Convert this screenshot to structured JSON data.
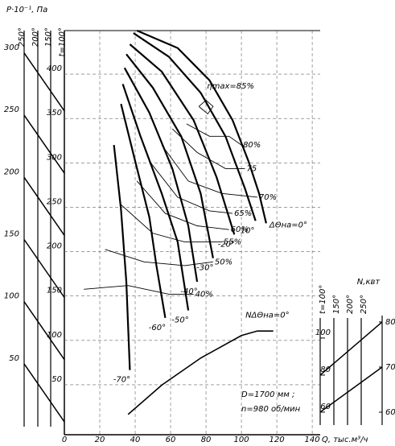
{
  "chart_data": {
    "type": "line",
    "ylabel": "P·10⁻¹, Па",
    "xlabel": "Q, тыс.м³/ч",
    "xlim": [
      0,
      144.5
    ],
    "xticks": [
      0,
      20,
      40,
      60,
      80,
      100,
      120,
      140
    ],
    "ylim": [
      -7,
      318
    ],
    "yticks": [
      50,
      100,
      150,
      200,
      250,
      300
    ],
    "t_axis_labels": [
      "250°",
      "200°",
      "150°",
      "t=100°"
    ],
    "tlim": [
      -6.3,
      449
    ],
    "tticks": [
      50,
      100,
      150,
      200,
      250,
      300,
      350,
      400
    ],
    "y2lim": [
      55,
      144.6
    ],
    "y2label": "N,квт",
    "y2ticks": [
      60,
      70,
      80
    ],
    "power_t_labels": [
      "t=100°",
      "150°",
      "200°",
      "250°"
    ],
    "power_tlim": [
      47.8,
      113
    ],
    "power_tticks": [
      60,
      80,
      100
    ],
    "grid": true,
    "annotations": [
      "D=1700 мм ;",
      "n=980 об/мин"
    ],
    "series": [
      {
        "name": "ΔΘна=0°",
        "color": "#000",
        "kind": "pressure",
        "x": [
          41,
          64,
          82,
          95,
          104,
          110,
          114
        ],
        "values": [
          318,
          304,
          278,
          246,
          213,
          187,
          163
        ]
      },
      {
        "name": "10°",
        "color": "#000",
        "kind": "pressure",
        "x": [
          39,
          59,
          77,
          91,
          102,
          108
        ],
        "values": [
          316,
          297,
          268,
          233,
          191,
          165
        ]
      },
      {
        "name": "-20°",
        "color": "#000",
        "kind": "pressure",
        "x": [
          37,
          55,
          73,
          86,
          96
        ],
        "values": [
          307,
          285,
          246,
          200,
          154
        ]
      },
      {
        "name": "-30°",
        "color": "#000",
        "kind": "pressure",
        "x": [
          35,
          50,
          66,
          77,
          84
        ],
        "values": [
          299,
          272,
          233,
          187,
          135
        ]
      },
      {
        "name": "-40°",
        "color": "#000",
        "kind": "pressure",
        "x": [
          34,
          48,
          61,
          70,
          75
        ],
        "values": [
          288,
          252,
          207,
          161,
          116
        ]
      },
      {
        "name": "-50°",
        "color": "#000",
        "kind": "pressure",
        "x": [
          33,
          43,
          55,
          64,
          70
        ],
        "values": [
          275,
          233,
          187,
          148,
          93
        ]
      },
      {
        "name": "-60°",
        "color": "#000",
        "kind": "pressure",
        "x": [
          32,
          40,
          48,
          52,
          57
        ],
        "values": [
          259,
          213,
          168,
          129,
          87
        ]
      },
      {
        "name": "-70°",
        "color": "#000",
        "kind": "pressure",
        "x": [
          28,
          32,
          35,
          37
        ],
        "values": [
          226,
          174,
          116,
          45
        ]
      },
      {
        "name": "ηmax=85%",
        "color": "#000",
        "kind": "efficiency",
        "x": [
          76,
          80,
          84,
          81,
          76
        ],
        "values": [
          257,
          262,
          257,
          251,
          257
        ]
      },
      {
        "name": "80%",
        "color": "#000",
        "kind": "efficiency",
        "x": [
          69,
          82,
          93,
          100
        ],
        "values": [
          243,
          233,
          233,
          226
        ]
      },
      {
        "name": "75",
        "color": "#000",
        "kind": "efficiency",
        "x": [
          61,
          75,
          91,
          102
        ],
        "values": [
          239,
          220,
          207,
          207
        ]
      },
      {
        "name": "70%",
        "color": "#000",
        "kind": "efficiency",
        "x": [
          55,
          70,
          89,
          109
        ],
        "values": [
          226,
          197,
          187,
          184
        ]
      },
      {
        "name": "65%",
        "color": "#000",
        "kind": "efficiency",
        "x": [
          48,
          64,
          82,
          95
        ],
        "values": [
          213,
          184,
          173,
          171
        ]
      },
      {
        "name": "60%",
        "color": "#000",
        "kind": "efficiency",
        "x": [
          41,
          57,
          75,
          93
        ],
        "values": [
          197,
          171,
          161,
          158
        ]
      },
      {
        "name": "55%",
        "color": "#000",
        "kind": "efficiency",
        "x": [
          32,
          50,
          68,
          89
        ],
        "values": [
          178,
          155,
          148,
          148
        ]
      },
      {
        "name": "50%",
        "color": "#000",
        "kind": "efficiency",
        "x": [
          23,
          45,
          68,
          84
        ],
        "values": [
          142,
          132,
          129,
          132
        ]
      },
      {
        "name": "40%",
        "color": "#000",
        "kind": "efficiency",
        "x": [
          11,
          36,
          59,
          73
        ],
        "values": [
          110,
          113,
          106,
          106
        ]
      },
      {
        "name": "NΔΘна=0°",
        "color": "#000",
        "kind": "power",
        "axis": "y2",
        "x": [
          36,
          55,
          77,
          100,
          109,
          118
        ],
        "values": [
          59.5,
          66,
          72,
          77,
          78,
          78
        ]
      }
    ]
  }
}
